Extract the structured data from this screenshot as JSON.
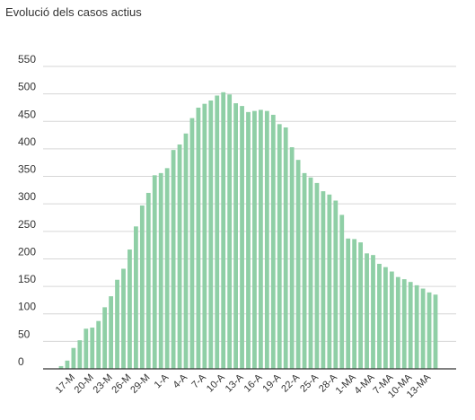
{
  "chart_data": {
    "type": "bar",
    "title": "Evolució dels casos actius",
    "xlabel": "",
    "ylabel": "",
    "ylim": [
      0,
      550
    ],
    "yticks": [
      0,
      50,
      100,
      150,
      200,
      250,
      300,
      350,
      400,
      450,
      500,
      550
    ],
    "grid": true,
    "bar_color": "#8fcfa6",
    "categories": [
      "15-M",
      "16-M",
      "17-M",
      "18-M",
      "19-M",
      "20-M",
      "21-M",
      "22-M",
      "23-M",
      "24-M",
      "25-M",
      "26-M",
      "27-M",
      "28-M",
      "29-M",
      "30-M",
      "31-M",
      "1-A",
      "2-A",
      "3-A",
      "4-A",
      "5-A",
      "6-A",
      "7-A",
      "8-A",
      "9-A",
      "10-A",
      "11-A",
      "12-A",
      "13-A",
      "14-A",
      "15-A",
      "16-A",
      "17-A",
      "18-A",
      "19-A",
      "20-A",
      "21-A",
      "22-A",
      "23-A",
      "24-A",
      "25-A",
      "26-A",
      "27-A",
      "28-A",
      "29-A",
      "30-A",
      "1-MA",
      "2-MA",
      "3-MA",
      "4-MA",
      "5-MA",
      "6-MA",
      "7-MA",
      "8-MA",
      "9-MA",
      "10-MA",
      "11-MA",
      "12-MA",
      "13-MA",
      "14-MA"
    ],
    "tick_labels": [
      "17-M",
      "20-M",
      "23-M",
      "26-M",
      "29-M",
      "1-A",
      "4-A",
      "7-A",
      "10-A",
      "13-A",
      "16-A",
      "19-A",
      "22-A",
      "25-A",
      "28-A",
      "1-MA",
      "4-MA",
      "7-MA",
      "10-MA",
      "13-MA"
    ],
    "values": [
      5,
      15,
      38,
      52,
      73,
      75,
      87,
      112,
      132,
      162,
      182,
      217,
      259,
      297,
      320,
      352,
      356,
      365,
      398,
      408,
      428,
      456,
      475,
      482,
      488,
      497,
      503,
      499,
      483,
      478,
      467,
      469,
      471,
      469,
      462,
      445,
      439,
      403,
      380,
      356,
      348,
      338,
      323,
      317,
      306,
      280,
      237,
      236,
      230,
      210,
      207,
      191,
      185,
      177,
      167,
      163,
      158,
      152,
      146,
      139,
      135
    ]
  }
}
